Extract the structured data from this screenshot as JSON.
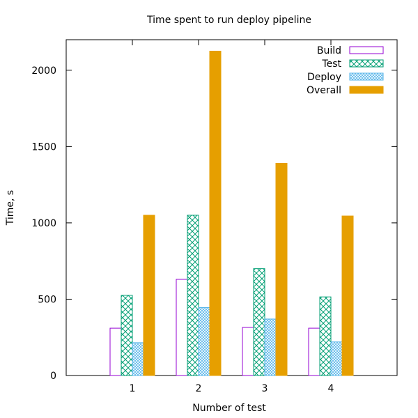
{
  "chart_data": {
    "type": "bar",
    "title": "Time spent to run deploy pipeline",
    "xlabel": "Number of test",
    "ylabel": "Time, s",
    "categories": [
      "1",
      "2",
      "3",
      "4"
    ],
    "ylim": [
      0,
      2200
    ],
    "yticks": [
      "0",
      "500",
      "1000",
      "1500",
      "2000"
    ],
    "legend_position": "top-right",
    "grid": false,
    "series": [
      {
        "name": "Build",
        "values": [
          310,
          630,
          315,
          310
        ],
        "color": "#9400d3",
        "fill": "none"
      },
      {
        "name": "Test",
        "values": [
          525,
          1050,
          700,
          515
        ],
        "color": "#009e73",
        "fill": "crosshatch"
      },
      {
        "name": "Deploy",
        "values": [
          215,
          445,
          370,
          220
        ],
        "color": "#56b4e9",
        "fill": "fine-crosshatch"
      },
      {
        "name": "Overall",
        "values": [
          1050,
          2125,
          1390,
          1045
        ],
        "color": "#e69f00",
        "fill": "solid"
      }
    ]
  }
}
